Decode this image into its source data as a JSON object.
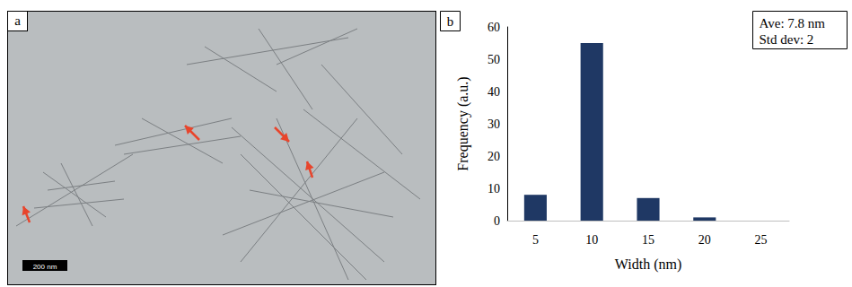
{
  "micrograph": {
    "panel_label": "a",
    "scale_bar": "200 nm"
  },
  "chart_data": {
    "type": "bar",
    "panel_label": "b",
    "categories": [
      "5",
      "10",
      "15",
      "20",
      "25"
    ],
    "values": [
      8,
      55,
      7,
      1,
      0
    ],
    "color": "#1f3864",
    "x_label": "Width (nm)",
    "y_label": "Frequency (a.u.)",
    "annotations": [
      "Ave: 7.8 nm",
      "Std dev: 2"
    ],
    "ylim": [
      0,
      60
    ],
    "yticks": [
      0,
      10,
      20,
      30,
      40,
      50,
      60
    ],
    "grid": false
  }
}
